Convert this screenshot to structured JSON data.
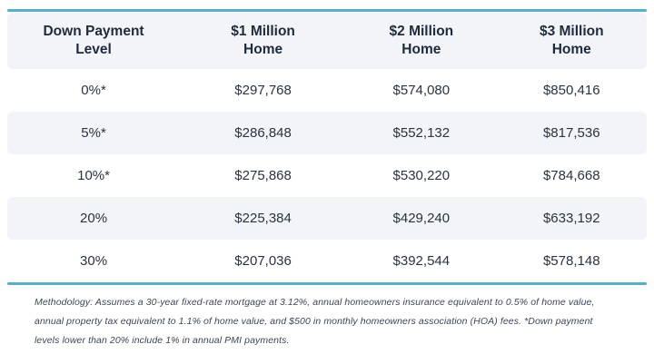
{
  "accent_color": "#56AECB",
  "stripe_color": "#F2F4F7",
  "table": {
    "columns": [
      {
        "line1": "Down Payment",
        "line2": "Level"
      },
      {
        "line1": "$1 Million",
        "line2": "Home"
      },
      {
        "line1": "$2 Million",
        "line2": "Home"
      },
      {
        "line1": "$3 Million",
        "line2": "Home"
      }
    ],
    "rows": [
      {
        "level": "0%*",
        "values": [
          "$297,768",
          "$574,080",
          "$850,416"
        ]
      },
      {
        "level": "5%*",
        "values": [
          "$286,848",
          "$552,132",
          "$817,536"
        ]
      },
      {
        "level": "10%*",
        "values": [
          "$275,868",
          "$530,220",
          "$784,668"
        ]
      },
      {
        "level": "20%",
        "values": [
          "$225,384",
          "$429,240",
          "$633,192"
        ]
      },
      {
        "level": "30%",
        "values": [
          "$207,036",
          "$392,544",
          "$578,148"
        ]
      }
    ]
  },
  "footnote": "Methodology: Assumes a 30-year fixed-rate mortgage at 3.12%, annual homeowners insurance equivalent to 0.5% of home value, annual property tax equivalent to 1.1% of home value, and $500 in monthly homeowners association (HOA) fees. *Down payment levels lower than 20% include 1% in annual PMI payments.",
  "chart_data": {
    "type": "table",
    "title": "",
    "columns": [
      "Down Payment Level",
      "$1 Million Home",
      "$2 Million Home",
      "$3 Million Home"
    ],
    "rows": [
      [
        "0%*",
        297768,
        574080,
        850416
      ],
      [
        "5%*",
        286848,
        552132,
        817536
      ],
      [
        "10%*",
        275868,
        530220,
        784668
      ],
      [
        "20%",
        225384,
        429240,
        633192
      ],
      [
        "30%",
        207036,
        392544,
        578148
      ]
    ],
    "note": "Methodology: Assumes a 30-year fixed-rate mortgage at 3.12%, annual homeowners insurance equivalent to 0.5% of home value, annual property tax equivalent to 1.1% of home value, and $500 in monthly homeowners association (HOA) fees. *Down payment levels lower than 20% include 1% in annual PMI payments."
  }
}
